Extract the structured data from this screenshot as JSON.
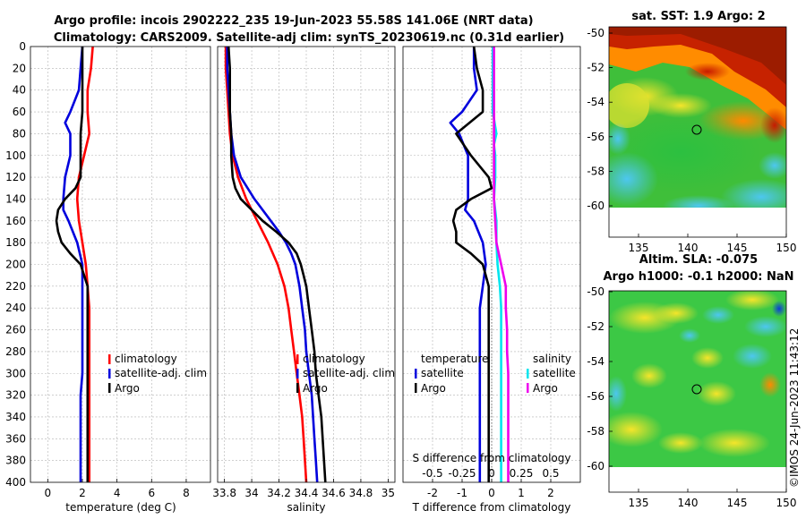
{
  "title": {
    "line1": "Argo profile: incois 2902222_235 19-Jun-2023 55.58S 141.06E (NRT data)",
    "line2": "Climatology: CARS2009. Satellite-adj clim: synTS_20230619.nc (0.31d earlier)"
  },
  "depth_ticks": [
    "0",
    "20",
    "40",
    "60",
    "80",
    "100",
    "120",
    "140",
    "160",
    "180",
    "200",
    "220",
    "240",
    "260",
    "280",
    "300",
    "320",
    "340",
    "360",
    "380",
    "400"
  ],
  "colors": {
    "climatology": "#ff0000",
    "satellite": "#0000dd",
    "argo": "#000000",
    "sat_salinity": "#00e5ee",
    "argo_salinity": "#ee00ee"
  },
  "chart_data": [
    {
      "type": "line",
      "panel": "temperature",
      "xlabel": "temperature (deg C)",
      "xlim": [
        -1,
        9.4
      ],
      "ylim": [
        0,
        400
      ],
      "xticks": [
        0,
        2,
        4,
        6,
        8
      ],
      "xtick_labels": [
        "0",
        "2",
        "4",
        "6",
        "8"
      ],
      "legend": [
        "climatology",
        "satellite-adj. clim",
        "Argo"
      ],
      "series": [
        {
          "name": "climatology",
          "color": "#ff0000",
          "depth": [
            0,
            20,
            40,
            60,
            80,
            100,
            120,
            140,
            160,
            180,
            200,
            220,
            240,
            260,
            280,
            300,
            320,
            340,
            360,
            380,
            400
          ],
          "values": [
            2.6,
            2.5,
            2.3,
            2.3,
            2.4,
            2.1,
            1.8,
            1.7,
            1.8,
            2.0,
            2.2,
            2.3,
            2.4,
            2.4,
            2.4,
            2.4,
            2.4,
            2.4,
            2.4,
            2.4,
            2.4
          ]
        },
        {
          "name": "satellite-adj. clim",
          "color": "#0000dd",
          "depth": [
            0,
            20,
            40,
            60,
            70,
            80,
            100,
            120,
            140,
            150,
            160,
            180,
            200,
            220,
            240,
            260,
            280,
            300,
            320,
            340,
            360,
            380,
            400
          ],
          "values": [
            2.0,
            1.9,
            1.8,
            1.3,
            1.0,
            1.3,
            1.3,
            1.0,
            0.9,
            0.9,
            1.2,
            1.7,
            2.0,
            2.0,
            2.0,
            2.0,
            2.0,
            2.0,
            1.9,
            1.9,
            1.9,
            1.9,
            1.9
          ]
        },
        {
          "name": "Argo",
          "color": "#000000",
          "depth": [
            0,
            20,
            40,
            60,
            80,
            100,
            120,
            130,
            140,
            150,
            160,
            170,
            180,
            190,
            200,
            210,
            220,
            240,
            260,
            280,
            300,
            320,
            340,
            360,
            380,
            400
          ],
          "values": [
            2.0,
            2.0,
            2.0,
            2.0,
            1.9,
            1.9,
            1.9,
            1.6,
            1.0,
            0.6,
            0.5,
            0.6,
            0.8,
            1.3,
            1.9,
            2.1,
            2.3,
            2.3,
            2.3,
            2.3,
            2.3,
            2.3,
            2.3,
            2.3,
            2.3,
            2.3
          ]
        }
      ]
    },
    {
      "type": "line",
      "panel": "salinity",
      "xlabel": "salinity",
      "xlim": [
        33.75,
        35.05
      ],
      "ylim": [
        0,
        400
      ],
      "xticks": [
        33.8,
        34,
        34.2,
        34.4,
        34.6,
        34.8,
        35
      ],
      "xtick_labels": [
        "33.8",
        "34",
        "34.2",
        "34.4",
        "34.6",
        "34.8",
        "35"
      ],
      "legend": [
        "climatology",
        "satellite-adj. clim",
        "Argo"
      ],
      "series": [
        {
          "name": "climatology",
          "color": "#ff0000",
          "depth": [
            0,
            20,
            40,
            60,
            80,
            100,
            120,
            140,
            160,
            180,
            200,
            220,
            240,
            260,
            280,
            300,
            320,
            340,
            360,
            380,
            400
          ],
          "values": [
            33.81,
            33.81,
            33.82,
            33.83,
            33.84,
            33.86,
            33.9,
            33.96,
            34.04,
            34.12,
            34.19,
            34.24,
            34.27,
            34.29,
            34.31,
            34.33,
            34.35,
            34.37,
            34.38,
            34.39,
            34.4
          ]
        },
        {
          "name": "satellite-adj. clim",
          "color": "#0000dd",
          "depth": [
            0,
            20,
            40,
            60,
            80,
            100,
            120,
            140,
            160,
            170,
            180,
            190,
            200,
            220,
            240,
            260,
            280,
            300,
            320,
            340,
            360,
            380,
            400
          ],
          "values": [
            33.82,
            33.82,
            33.83,
            33.84,
            33.85,
            33.87,
            33.92,
            34.02,
            34.14,
            34.2,
            34.25,
            34.29,
            34.32,
            34.35,
            34.37,
            34.39,
            34.4,
            34.42,
            34.44,
            34.45,
            34.46,
            34.47,
            34.48
          ]
        },
        {
          "name": "Argo",
          "color": "#000000",
          "depth": [
            0,
            20,
            40,
            60,
            80,
            100,
            120,
            130,
            140,
            150,
            160,
            170,
            180,
            190,
            200,
            210,
            220,
            240,
            260,
            280,
            300,
            320,
            340,
            360,
            380,
            400
          ],
          "values": [
            33.83,
            33.84,
            33.84,
            33.84,
            33.85,
            33.85,
            33.86,
            33.88,
            33.92,
            34.0,
            34.08,
            34.18,
            34.27,
            34.33,
            34.36,
            34.38,
            34.4,
            34.42,
            34.44,
            34.46,
            34.47,
            34.49,
            34.51,
            34.52,
            34.53,
            34.54
          ]
        }
      ]
    },
    {
      "type": "line",
      "panel": "difference",
      "xlabel": "T difference from climatology",
      "xlabel2": "S difference from climatology",
      "xlim": [
        -3,
        3
      ],
      "ylim": [
        0,
        400
      ],
      "s_xlim": [
        -0.75,
        0.75
      ],
      "xticks": [
        -2,
        -1,
        0,
        1,
        2
      ],
      "xtick_labels": [
        "-2",
        "-1",
        "0",
        "1",
        "2"
      ],
      "s_xticks": [
        -0.5,
        -0.25,
        0,
        0.25,
        0.5
      ],
      "s_xtick_labels": [
        "-0.5",
        "-0.25",
        "0",
        "0.25",
        "0.5"
      ],
      "legend_left_title": "temperature",
      "legend_right_title": "salinity",
      "legend_left": [
        "satellite",
        "Argo"
      ],
      "legend_right": [
        "satellite",
        "Argo"
      ],
      "series": [
        {
          "name": "temperature satellite",
          "axis": "T",
          "color": "#0000dd",
          "depth": [
            0,
            20,
            40,
            60,
            70,
            80,
            100,
            120,
            140,
            150,
            160,
            180,
            200,
            220,
            240,
            260,
            280,
            300,
            320,
            340,
            360,
            380,
            400
          ],
          "values": [
            -0.6,
            -0.6,
            -0.5,
            -1.0,
            -1.4,
            -1.1,
            -0.8,
            -0.8,
            -0.8,
            -0.9,
            -0.6,
            -0.3,
            -0.2,
            -0.3,
            -0.4,
            -0.4,
            -0.4,
            -0.4,
            -0.4,
            -0.4,
            -0.4,
            -0.4,
            -0.4
          ]
        },
        {
          "name": "temperature Argo",
          "axis": "T",
          "color": "#000000",
          "depth": [
            0,
            20,
            40,
            60,
            80,
            100,
            120,
            130,
            140,
            150,
            160,
            170,
            180,
            190,
            200,
            210,
            220,
            240,
            260,
            280,
            300,
            320,
            340,
            360,
            380,
            400
          ],
          "values": [
            -0.6,
            -0.5,
            -0.3,
            -0.3,
            -1.2,
            -0.7,
            -0.1,
            0.0,
            -0.7,
            -1.2,
            -1.3,
            -1.2,
            -1.2,
            -0.7,
            -0.3,
            -0.2,
            -0.1,
            -0.1,
            -0.1,
            -0.1,
            -0.1,
            -0.1,
            -0.1,
            -0.1,
            -0.1,
            -0.1
          ]
        },
        {
          "name": "salinity satellite",
          "axis": "S",
          "color": "#00e5ee",
          "depth": [
            0,
            20,
            40,
            60,
            80,
            90,
            100,
            120,
            140,
            160,
            180,
            200,
            220,
            240,
            260,
            280,
            300,
            320,
            340,
            360,
            380,
            400
          ],
          "values": [
            0.01,
            0.01,
            0.01,
            0.01,
            0.04,
            0.02,
            0.03,
            0.03,
            0.02,
            0.04,
            0.04,
            0.05,
            0.07,
            0.08,
            0.08,
            0.08,
            0.08,
            0.08,
            0.08,
            0.08,
            0.08,
            0.08
          ]
        },
        {
          "name": "salinity Argo",
          "axis": "S",
          "color": "#ee00ee",
          "depth": [
            0,
            20,
            40,
            60,
            80,
            100,
            120,
            140,
            160,
            180,
            200,
            220,
            240,
            260,
            280,
            300,
            320,
            340,
            360,
            380,
            400
          ],
          "values": [
            0.02,
            0.02,
            0.02,
            0.02,
            0.02,
            0.02,
            0.02,
            0.02,
            0.03,
            0.04,
            0.08,
            0.12,
            0.12,
            0.13,
            0.13,
            0.14,
            0.14,
            0.14,
            0.14,
            0.14,
            0.14
          ]
        }
      ]
    }
  ],
  "maps": {
    "sst": {
      "title": "sat. SST: 1.9 Argo: 2",
      "lat_ticks": [
        "-50",
        "-52",
        "-54",
        "-56",
        "-58",
        "-60"
      ],
      "lon_ticks": [
        "135",
        "140",
        "145",
        "150"
      ]
    },
    "sla": {
      "title1": "Altim. SLA: -0.075",
      "title2": "Argo h1000: -0.1 h2000: NaN",
      "lat_ticks": [
        "-50",
        "-52",
        "-54",
        "-56",
        "-58",
        "-60"
      ],
      "lon_ticks": [
        "135",
        "140",
        "145",
        "150"
      ]
    }
  },
  "watermark": "©IMOS 24-Jun-2023 11:43:12"
}
